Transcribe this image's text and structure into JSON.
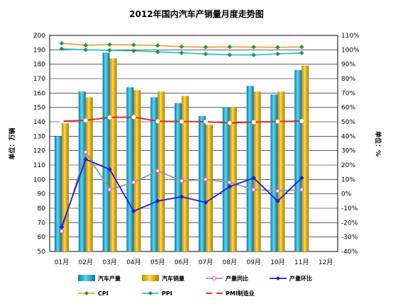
{
  "chart_data": {
    "type": "bar",
    "title": "2012年国内汽车产销量月度走势图",
    "categories": [
      "01月",
      "02月",
      "03月",
      "04月",
      "05月",
      "06月",
      "07月",
      "08月",
      "09月",
      "10月",
      "11月",
      "12月"
    ],
    "ylabel": "单位：万辆",
    "ylabel2": "单位：%",
    "ylim": [
      50,
      200
    ],
    "ylim2": [
      -40,
      110
    ],
    "y_ticks": [
      50,
      60,
      70,
      80,
      90,
      100,
      110,
      120,
      130,
      140,
      150,
      160,
      170,
      180,
      190,
      200
    ],
    "y2_ticks": [
      "-40%",
      "-30%",
      "-20%",
      "-10%",
      "0%",
      "10%",
      "20%",
      "30%",
      "40%",
      "50%",
      "60%",
      "70%",
      "80%",
      "90%",
      "100%",
      "110%"
    ],
    "grid": "horizontal",
    "legend_position": "bottom",
    "bar_series": [
      {
        "name": "汽车产量",
        "axis": "left",
        "color": "#2bb5d8",
        "values": [
          130,
          161,
          188,
          164,
          157,
          153,
          144,
          150,
          165,
          159,
          176,
          null
        ]
      },
      {
        "name": "汽车销量",
        "axis": "left",
        "color": "#e6b422",
        "values": [
          139,
          157,
          184,
          162,
          161,
          158,
          138,
          150,
          161,
          161,
          179,
          null
        ]
      }
    ],
    "line_series": [
      {
        "name": "产量同比",
        "axis": "right",
        "color": "#999999",
        "marker": "o",
        "marker_color": "#e040fb",
        "values": [
          -26,
          29,
          3,
          8,
          16,
          9,
          10,
          8,
          3,
          2,
          3,
          null
        ]
      },
      {
        "name": "产量环比",
        "axis": "right",
        "color": "#2020c8",
        "marker": "D",
        "marker_color": "#2020c8",
        "values": [
          -23,
          24,
          17,
          -12,
          -5,
          -2,
          -6,
          5,
          11,
          -5,
          11,
          null
        ]
      },
      {
        "name": "CPI",
        "axis": "right",
        "color": "#f4a340",
        "marker": "D",
        "marker_color": "#2e8b57",
        "values": [
          104.5,
          103.2,
          103.6,
          103.4,
          103.0,
          102.2,
          101.8,
          102.0,
          101.9,
          101.7,
          102.0,
          null
        ]
      },
      {
        "name": "PPI",
        "axis": "right",
        "color": "#33c2d6",
        "marker": "D",
        "marker_color": "#2e8b57",
        "values": [
          100.7,
          100.0,
          99.7,
          99.3,
          98.6,
          97.9,
          97.1,
          96.5,
          96.4,
          97.2,
          97.8,
          null
        ]
      },
      {
        "name": "PMI制造业",
        "axis": "right",
        "color": "#e02020",
        "marker": "o",
        "marker_color": "#ffffff",
        "values": [
          50.5,
          51.0,
          53.1,
          53.3,
          50.4,
          50.2,
          50.1,
          49.2,
          49.8,
          50.2,
          50.6,
          null
        ]
      }
    ]
  }
}
